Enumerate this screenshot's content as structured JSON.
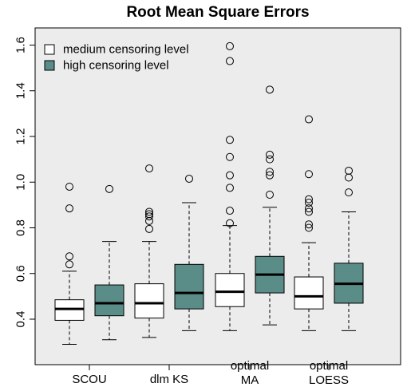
{
  "chart_data": {
    "type": "boxplot",
    "title": "Root Mean Square Errors",
    "xlabel": "",
    "ylabel": "",
    "ylim": [
      0.3,
      1.65
    ],
    "yticks": [
      "0.4",
      "0.6",
      "0.8",
      "1.0",
      "1.2",
      "1.4",
      "1.6"
    ],
    "categories": [
      {
        "lines": [
          "SCOU"
        ]
      },
      {
        "lines": [
          "dlm KS"
        ]
      },
      {
        "lines": [
          "optimal",
          "MA"
        ]
      },
      {
        "lines": [
          "optimal",
          "LOESS"
        ]
      }
    ],
    "series": [
      {
        "name": "medium censoring level",
        "color": "#ffffff"
      },
      {
        "name": "high censoring level",
        "color": "#5a8c88"
      }
    ],
    "boxes": [
      {
        "category": 0,
        "series": 0,
        "whisker_low": 0.29,
        "q1": 0.395,
        "median": 0.445,
        "q3": 0.485,
        "whisker_high": 0.61,
        "outliers": [
          0.64,
          0.675,
          0.885,
          0.98
        ]
      },
      {
        "category": 0,
        "series": 1,
        "whisker_low": 0.31,
        "q1": 0.415,
        "median": 0.47,
        "q3": 0.55,
        "whisker_high": 0.74,
        "outliers": [
          0.97
        ]
      },
      {
        "category": 1,
        "series": 0,
        "whisker_low": 0.32,
        "q1": 0.405,
        "median": 0.47,
        "q3": 0.555,
        "whisker_high": 0.74,
        "outliers": [
          0.795,
          0.83,
          0.85,
          0.86,
          0.87,
          1.06
        ]
      },
      {
        "category": 1,
        "series": 1,
        "whisker_low": 0.35,
        "q1": 0.445,
        "median": 0.515,
        "q3": 0.64,
        "whisker_high": 0.91,
        "outliers": [
          1.015
        ]
      },
      {
        "category": 2,
        "series": 0,
        "whisker_low": 0.35,
        "q1": 0.455,
        "median": 0.52,
        "q3": 0.6,
        "whisker_high": 0.81,
        "outliers": [
          0.82,
          0.875,
          0.975,
          1.03,
          1.11,
          1.185,
          1.53,
          1.595
        ]
      },
      {
        "category": 2,
        "series": 1,
        "whisker_low": 0.375,
        "q1": 0.515,
        "median": 0.595,
        "q3": 0.675,
        "whisker_high": 0.89,
        "outliers": [
          0.945,
          1.03,
          1.045,
          1.1,
          1.12,
          1.405
        ]
      },
      {
        "category": 3,
        "series": 0,
        "whisker_low": 0.35,
        "q1": 0.445,
        "median": 0.5,
        "q3": 0.585,
        "whisker_high": 0.735,
        "outliers": [
          0.8,
          0.815,
          0.87,
          0.885,
          0.91,
          0.925,
          1.035,
          1.275
        ]
      },
      {
        "category": 3,
        "series": 1,
        "whisker_low": 0.35,
        "q1": 0.47,
        "median": 0.555,
        "q3": 0.645,
        "whisker_high": 0.87,
        "outliers": [
          0.955,
          1.02,
          1.05
        ]
      }
    ],
    "legend_position": "top-left",
    "background": "#ececec",
    "grid": false
  }
}
